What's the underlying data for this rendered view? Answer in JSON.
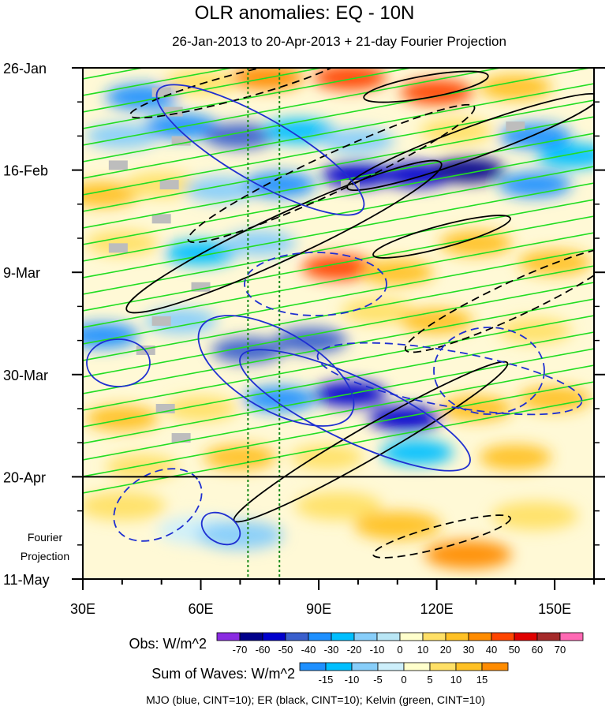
{
  "chart_data": {
    "type": "heatmap",
    "title": "OLR anomalies: EQ - 10N",
    "subtitle": "26-Jan-2013 to 20-Apr-2013 + 21-day Fourier Projection",
    "x_ticks": [
      {
        "value": 30,
        "label": "30E"
      },
      {
        "value": 60,
        "label": "60E"
      },
      {
        "value": 90,
        "label": "90E"
      },
      {
        "value": 120,
        "label": "120E"
      },
      {
        "value": 150,
        "label": "150E"
      }
    ],
    "xlim": [
      30,
      160
    ],
    "y_ticks": [
      {
        "value": 0,
        "label": "26-Jan"
      },
      {
        "value": 21,
        "label": "16-Feb"
      },
      {
        "value": 42,
        "label": "9-Mar"
      },
      {
        "value": 63,
        "label": "30-Mar"
      },
      {
        "value": 84,
        "label": "20-Apr"
      },
      {
        "value": 105,
        "label": "11-May"
      }
    ],
    "ylim": [
      0,
      105
    ],
    "observation_end_day": 84,
    "vertical_reference_lines": [
      72,
      80
    ],
    "projection_label": [
      "Fourier",
      "Projection"
    ],
    "obs_colorbar": {
      "title": "Obs: W/m^2",
      "levels": [
        "-70",
        "-60",
        "-50",
        "-40",
        "-30",
        "-20",
        "-10",
        "0",
        "10",
        "20",
        "30",
        "40",
        "50",
        "60",
        "70"
      ],
      "colors": [
        "#8a2be2",
        "#00008b",
        "#0000cd",
        "#3a5fcd",
        "#1e90ff",
        "#00bfff",
        "#87cefa",
        "#b9e6f5",
        "#ffffcc",
        "#ffe066",
        "#ffc125",
        "#ff8c00",
        "#ff4500",
        "#e00000",
        "#a52a2a",
        "#ff69b4"
      ]
    },
    "waves_colorbar": {
      "title": "Sum of Waves: W/m^2",
      "levels": [
        "-15",
        "-10",
        "-5",
        "0",
        "5",
        "10",
        "15"
      ],
      "colors": [
        "#1e90ff",
        "#00bfff",
        "#87cefa",
        "#cdeffb",
        "#ffffcc",
        "#ffe066",
        "#ffc125",
        "#ff8c00"
      ]
    },
    "contour_note": "MJO (blue, CINT=10); ER (black, CINT=10); Kelvin (green, CINT=10)",
    "series": [
      {
        "name": "MJO",
        "color": "#1f2fd1"
      },
      {
        "name": "ER",
        "color": "#000000"
      },
      {
        "name": "Kelvin",
        "color": "#22dd22"
      }
    ],
    "obs_cells": [
      {
        "lon": 45,
        "day": 6,
        "v": -35
      },
      {
        "lon": 60,
        "day": 3,
        "v": 15
      },
      {
        "lon": 77,
        "day": 2,
        "v": 30
      },
      {
        "lon": 98,
        "day": 2,
        "v": 40
      },
      {
        "lon": 120,
        "day": 5,
        "v": 45
      },
      {
        "lon": 140,
        "day": 4,
        "v": 20
      },
      {
        "lon": 40,
        "day": 14,
        "v": -20
      },
      {
        "lon": 55,
        "day": 12,
        "v": -40
      },
      {
        "lon": 70,
        "day": 14,
        "v": -50
      },
      {
        "lon": 85,
        "day": 13,
        "v": -30
      },
      {
        "lon": 100,
        "day": 15,
        "v": -20
      },
      {
        "lon": 125,
        "day": 13,
        "v": 10
      },
      {
        "lon": 145,
        "day": 14,
        "v": -40
      },
      {
        "lon": 155,
        "day": 18,
        "v": -30
      },
      {
        "lon": 35,
        "day": 26,
        "v": 25
      },
      {
        "lon": 50,
        "day": 24,
        "v": 10
      },
      {
        "lon": 65,
        "day": 25,
        "v": -20
      },
      {
        "lon": 80,
        "day": 24,
        "v": -40
      },
      {
        "lon": 100,
        "day": 22,
        "v": -55
      },
      {
        "lon": 115,
        "day": 22,
        "v": -60
      },
      {
        "lon": 128,
        "day": 21,
        "v": -70
      },
      {
        "lon": 145,
        "day": 24,
        "v": -40
      },
      {
        "lon": 40,
        "day": 36,
        "v": 10
      },
      {
        "lon": 60,
        "day": 38,
        "v": -30
      },
      {
        "lon": 75,
        "day": 36,
        "v": -20
      },
      {
        "lon": 95,
        "day": 41,
        "v": 45
      },
      {
        "lon": 110,
        "day": 42,
        "v": 25
      },
      {
        "lon": 130,
        "day": 36,
        "v": 20
      },
      {
        "lon": 150,
        "day": 40,
        "v": 25
      },
      {
        "lon": 35,
        "day": 55,
        "v": -35
      },
      {
        "lon": 55,
        "day": 52,
        "v": -20
      },
      {
        "lon": 72,
        "day": 58,
        "v": -50
      },
      {
        "lon": 88,
        "day": 56,
        "v": -45
      },
      {
        "lon": 105,
        "day": 50,
        "v": 15
      },
      {
        "lon": 120,
        "day": 52,
        "v": 20
      },
      {
        "lon": 145,
        "day": 54,
        "v": 15
      },
      {
        "lon": 40,
        "day": 72,
        "v": 20
      },
      {
        "lon": 60,
        "day": 70,
        "v": 10
      },
      {
        "lon": 80,
        "day": 68,
        "v": -40
      },
      {
        "lon": 98,
        "day": 67,
        "v": -60
      },
      {
        "lon": 112,
        "day": 72,
        "v": -60
      },
      {
        "lon": 130,
        "day": 70,
        "v": 20
      },
      {
        "lon": 150,
        "day": 68,
        "v": 25
      },
      {
        "lon": 45,
        "day": 82,
        "v": 10
      },
      {
        "lon": 70,
        "day": 80,
        "v": 25
      },
      {
        "lon": 92,
        "day": 80,
        "v": 15
      },
      {
        "lon": 115,
        "day": 79,
        "v": -30
      },
      {
        "lon": 140,
        "day": 80,
        "v": 20
      }
    ],
    "projection_cells": [
      {
        "lon": 40,
        "day": 90,
        "v": 5
      },
      {
        "lon": 60,
        "day": 95,
        "v": -5
      },
      {
        "lon": 70,
        "day": 96,
        "v": -10
      },
      {
        "lon": 95,
        "day": 90,
        "v": 5
      },
      {
        "lon": 110,
        "day": 94,
        "v": 10
      },
      {
        "lon": 128,
        "day": 100,
        "v": 15
      },
      {
        "lon": 145,
        "day": 92,
        "v": 5
      }
    ],
    "missing_cells": [
      {
        "lon": 39,
        "day": 20
      },
      {
        "lon": 50,
        "day": 5
      },
      {
        "lon": 53,
        "day": 9
      },
      {
        "lon": 55,
        "day": 15
      },
      {
        "lon": 52,
        "day": 24
      },
      {
        "lon": 50,
        "day": 31
      },
      {
        "lon": 39,
        "day": 37
      },
      {
        "lon": 60,
        "day": 45
      },
      {
        "lon": 50,
        "day": 52
      },
      {
        "lon": 46,
        "day": 58
      },
      {
        "lon": 51,
        "day": 70
      },
      {
        "lon": 55,
        "day": 76
      },
      {
        "lon": 98,
        "day": 24
      },
      {
        "lon": 140,
        "day": 12
      }
    ]
  }
}
